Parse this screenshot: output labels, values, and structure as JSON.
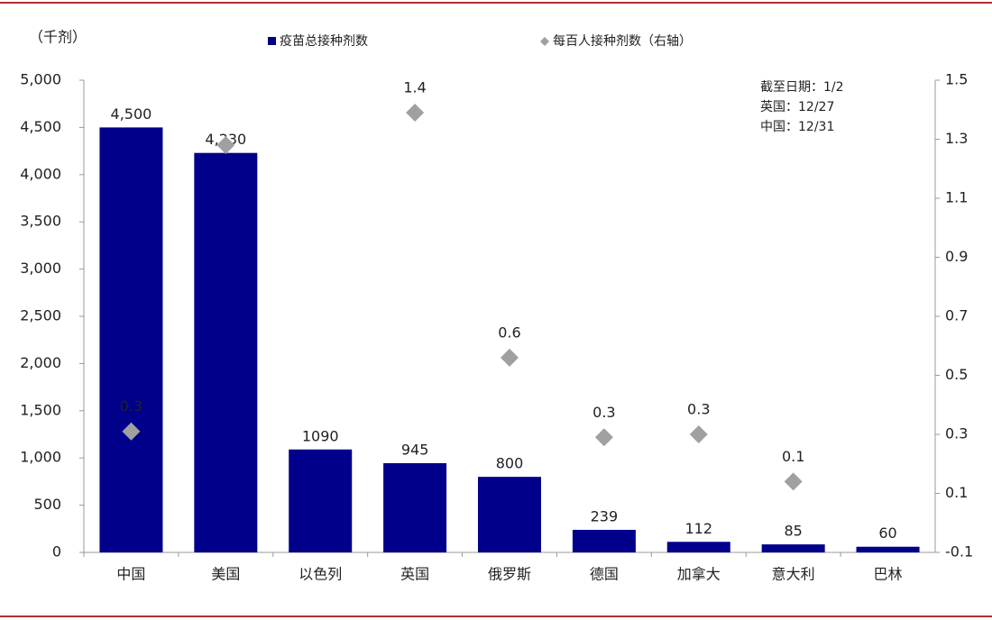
{
  "chart_data": {
    "type": "bar",
    "y_label": "（千剂）",
    "annotations": [
      "截至日期：1/2",
      "英国：12/27",
      "中国：12/31"
    ],
    "categories": [
      "中国",
      "美国",
      "以色列",
      "英国",
      "俄罗斯",
      "德国",
      "加拿大",
      "意大利",
      "巴林"
    ],
    "series": [
      {
        "name": "疫苗总接种剂数",
        "type": "bar",
        "color": "#00008b",
        "values": [
          4500,
          4230,
          1090,
          945,
          800,
          239,
          112,
          85,
          60
        ],
        "value_labels": [
          "4,500",
          "4,230",
          "1090",
          "945",
          "800",
          "239",
          "112",
          "85",
          "60"
        ]
      },
      {
        "name": "每百人接种剂数（右轴）",
        "type": "scatter",
        "axis": "y2",
        "color": "#a0a0a0",
        "values": [
          0.31,
          1.28,
          null,
          1.39,
          0.56,
          0.29,
          0.3,
          0.14,
          null
        ],
        "value_labels": [
          "0.3",
          null,
          null,
          "1.4",
          "0.6",
          "0.3",
          "0.3",
          "0.1",
          null
        ]
      }
    ],
    "ylim": [
      0,
      5000
    ],
    "yticks": [
      0,
      500,
      {
        "value": 1000,
        "label": "1,000"
      },
      {
        "value": 1500,
        "label": "1,500"
      },
      {
        "value": 2000,
        "label": "2,000"
      },
      {
        "value": 2500,
        "label": "2,500"
      },
      {
        "value": 3000,
        "label": "3,000"
      },
      {
        "value": 3500,
        "label": "3,500"
      },
      {
        "value": 4000,
        "label": "4,000"
      },
      {
        "value": 4500,
        "label": "4,500"
      },
      {
        "value": 5000,
        "label": "5,000"
      }
    ],
    "y2lim": [
      -0.1,
      1.5
    ],
    "y2ticks": [
      -0.1,
      0.1,
      0.3,
      0.5,
      0.7,
      0.9,
      1.1,
      1.3,
      1.5
    ],
    "grid": false
  }
}
